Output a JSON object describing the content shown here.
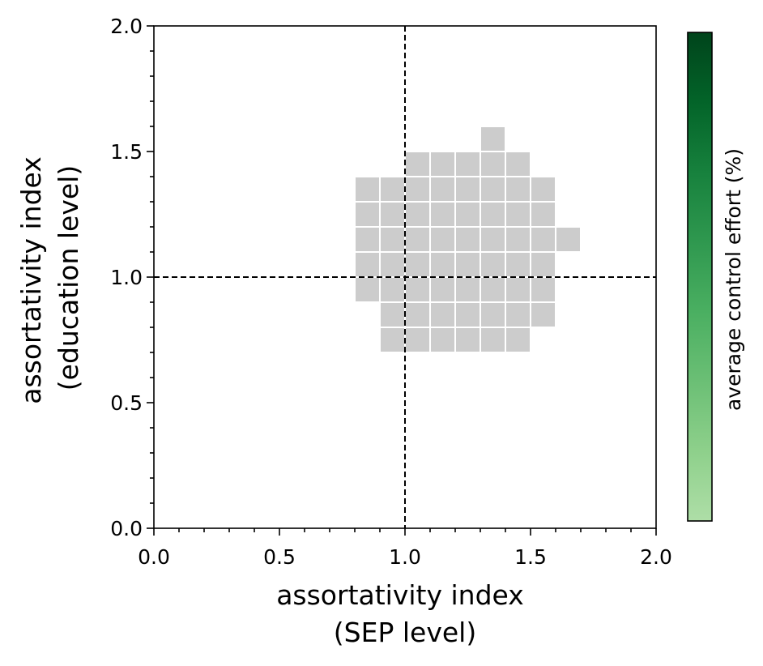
{
  "chart_data": {
    "type": "heatmap",
    "xlabel": [
      "assortativity index",
      "(SEP level)"
    ],
    "ylabel": [
      "assortativity index",
      "(education level)"
    ],
    "xlim": [
      0.0,
      2.0
    ],
    "ylim": [
      0.0,
      2.0
    ],
    "xticks": [
      "0.0",
      "0.5",
      "1.0",
      "1.5",
      "2.0"
    ],
    "yticks": [
      "0.0",
      "0.5",
      "1.0",
      "1.5",
      "2.0"
    ],
    "xtick_values": [
      0.0,
      0.5,
      1.0,
      1.5,
      2.0
    ],
    "ytick_values": [
      0.0,
      0.5,
      1.0,
      1.5,
      2.0
    ],
    "minor_tick_step": 0.1,
    "cell_size": 0.1,
    "reference_lines": {
      "x": 1.0,
      "y": 1.0,
      "style": "dashed"
    },
    "cell_color": "#cccccc",
    "cell_edge_color": "#ffffff",
    "cells": [
      {
        "x0": 1.3,
        "y0": 1.5
      },
      {
        "x0": 1.0,
        "y0": 1.4
      },
      {
        "x0": 1.1,
        "y0": 1.4
      },
      {
        "x0": 1.2,
        "y0": 1.4
      },
      {
        "x0": 1.3,
        "y0": 1.4
      },
      {
        "x0": 1.4,
        "y0": 1.4
      },
      {
        "x0": 0.8,
        "y0": 1.3
      },
      {
        "x0": 0.9,
        "y0": 1.3
      },
      {
        "x0": 1.0,
        "y0": 1.3
      },
      {
        "x0": 1.1,
        "y0": 1.3
      },
      {
        "x0": 1.2,
        "y0": 1.3
      },
      {
        "x0": 1.3,
        "y0": 1.3
      },
      {
        "x0": 1.4,
        "y0": 1.3
      },
      {
        "x0": 1.5,
        "y0": 1.3
      },
      {
        "x0": 0.8,
        "y0": 1.2
      },
      {
        "x0": 0.9,
        "y0": 1.2
      },
      {
        "x0": 1.0,
        "y0": 1.2
      },
      {
        "x0": 1.1,
        "y0": 1.2
      },
      {
        "x0": 1.2,
        "y0": 1.2
      },
      {
        "x0": 1.3,
        "y0": 1.2
      },
      {
        "x0": 1.4,
        "y0": 1.2
      },
      {
        "x0": 1.5,
        "y0": 1.2
      },
      {
        "x0": 0.8,
        "y0": 1.1
      },
      {
        "x0": 0.9,
        "y0": 1.1
      },
      {
        "x0": 1.0,
        "y0": 1.1
      },
      {
        "x0": 1.1,
        "y0": 1.1
      },
      {
        "x0": 1.2,
        "y0": 1.1
      },
      {
        "x0": 1.3,
        "y0": 1.1
      },
      {
        "x0": 1.4,
        "y0": 1.1
      },
      {
        "x0": 1.5,
        "y0": 1.1
      },
      {
        "x0": 1.6,
        "y0": 1.1
      },
      {
        "x0": 0.8,
        "y0": 1.0
      },
      {
        "x0": 0.9,
        "y0": 1.0
      },
      {
        "x0": 1.0,
        "y0": 1.0
      },
      {
        "x0": 1.1,
        "y0": 1.0
      },
      {
        "x0": 1.2,
        "y0": 1.0
      },
      {
        "x0": 1.3,
        "y0": 1.0
      },
      {
        "x0": 1.4,
        "y0": 1.0
      },
      {
        "x0": 1.5,
        "y0": 1.0
      },
      {
        "x0": 0.8,
        "y0": 0.9
      },
      {
        "x0": 0.9,
        "y0": 0.9
      },
      {
        "x0": 1.0,
        "y0": 0.9
      },
      {
        "x0": 1.1,
        "y0": 0.9
      },
      {
        "x0": 1.2,
        "y0": 0.9
      },
      {
        "x0": 1.3,
        "y0": 0.9
      },
      {
        "x0": 1.4,
        "y0": 0.9
      },
      {
        "x0": 1.5,
        "y0": 0.9
      },
      {
        "x0": 0.9,
        "y0": 0.8
      },
      {
        "x0": 1.0,
        "y0": 0.8
      },
      {
        "x0": 1.1,
        "y0": 0.8
      },
      {
        "x0": 1.2,
        "y0": 0.8
      },
      {
        "x0": 1.3,
        "y0": 0.8
      },
      {
        "x0": 1.4,
        "y0": 0.8
      },
      {
        "x0": 1.5,
        "y0": 0.8
      },
      {
        "x0": 0.9,
        "y0": 0.7
      },
      {
        "x0": 1.0,
        "y0": 0.7
      },
      {
        "x0": 1.1,
        "y0": 0.7
      },
      {
        "x0": 1.2,
        "y0": 0.7
      },
      {
        "x0": 1.3,
        "y0": 0.7
      },
      {
        "x0": 1.4,
        "y0": 0.7
      }
    ],
    "colorbar": {
      "label": "average control effort (%)",
      "colormap": "Greens",
      "colors": [
        "#aedea7",
        "#8ed08b",
        "#6bbf75",
        "#4aaf61",
        "#2f984f",
        "#17813d",
        "#036429",
        "#00441b"
      ]
    }
  }
}
